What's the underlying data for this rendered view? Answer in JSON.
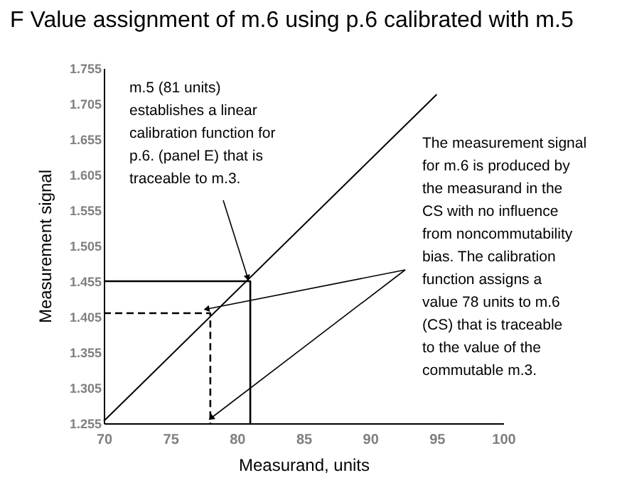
{
  "chart_data": {
    "type": "line",
    "title": "F Value assignment of m.6 using p.6 calibrated with m.5",
    "xlabel": "Measurand, units",
    "ylabel": "Measurement signal",
    "xlim": [
      70,
      100
    ],
    "ylim": [
      1.255,
      1.755
    ],
    "xticks": [
      70,
      75,
      80,
      85,
      90,
      95,
      100
    ],
    "yticks": [
      1.255,
      1.305,
      1.355,
      1.405,
      1.455,
      1.505,
      1.555,
      1.605,
      1.655,
      1.705,
      1.755
    ],
    "grid": false,
    "series": [
      {
        "x": [
          70,
          95
        ],
        "values": [
          1.258,
          1.718
        ],
        "color": "#000000",
        "line_style": "solid"
      },
      {
        "x": [
          70,
          81,
          81
        ],
        "values": [
          1.455,
          1.455,
          1.255
        ],
        "color": "#000000",
        "line_style": "solid"
      },
      {
        "x": [
          70,
          78,
          78
        ],
        "values": [
          1.41,
          1.41,
          1.255
        ],
        "color": "#000000",
        "line_style": "dashed"
      }
    ],
    "annotations": [
      {
        "text": "m.5 (81 units) establishes a linear calibration function for p.6. (panel E) that is traceable to m.3.",
        "x": 81,
        "y": 1.455
      },
      "The measurement signal for m.6 is produced by the measurand in the CS with no influence from noncommutability bias. The calibration function assigns a value 78 units to m.6 (CS) that is traceable to the value of the commutable m.3."
    ]
  }
}
